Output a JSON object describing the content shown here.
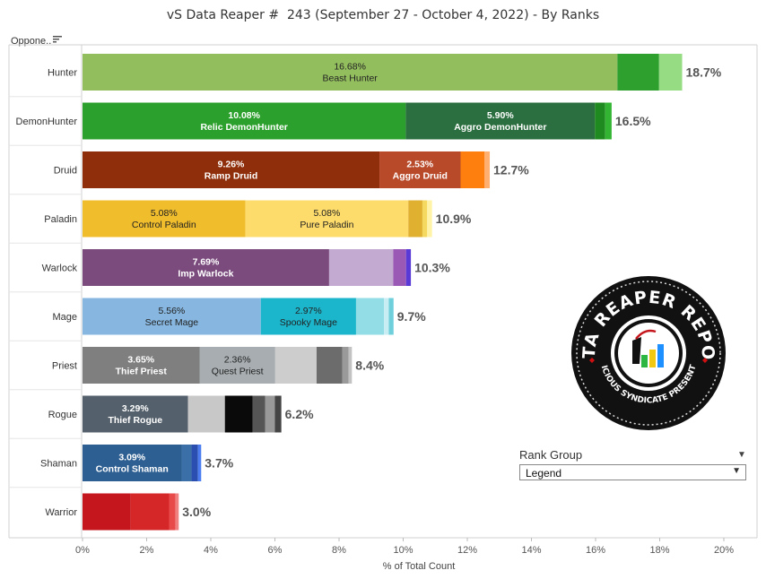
{
  "title": "vS Data Reaper #  243 (September 27 - October 4, 2022) - By Ranks",
  "opponent_header": "Oppone..",
  "rank_group": {
    "label": "Rank Group",
    "selected": "Legend"
  },
  "logo": {
    "main_text": "DATA REAPER REPORT",
    "sub_text": "VICIOUS SYNDICATE PRESENTS",
    "bar_colors": [
      "#2db742",
      "#f2c811",
      "#1e90ff"
    ]
  },
  "chart_data": {
    "type": "bar",
    "orientation": "horizontal",
    "stacked": true,
    "xlabel": "% of Total Count",
    "xlim": [
      0,
      21
    ],
    "xticks": [
      "0%",
      "2%",
      "4%",
      "6%",
      "8%",
      "10%",
      "12%",
      "14%",
      "16%",
      "18%",
      "20%"
    ],
    "categories": [
      "Hunter",
      "DemonHunter",
      "Druid",
      "Paladin",
      "Warlock",
      "Mage",
      "Priest",
      "Rogue",
      "Shaman",
      "Warrior"
    ],
    "totals": [
      "18.7%",
      "16.5%",
      "12.7%",
      "10.9%",
      "10.3%",
      "9.7%",
      "8.4%",
      "6.2%",
      "3.7%",
      "3.0%"
    ],
    "rows": [
      {
        "class": "Hunter",
        "segments": [
          {
            "value": 16.68,
            "color": "#93be5e",
            "label": "Beast Hunter",
            "pct": "16.68%",
            "text_color": "#222"
          },
          {
            "value": 1.3,
            "color": "#2ea02e"
          },
          {
            "value": 0.72,
            "color": "#96dc82"
          }
        ]
      },
      {
        "class": "DemonHunter",
        "segments": [
          {
            "value": 10.08,
            "color": "#2ca02c",
            "label": "Relic DemonHunter",
            "pct": "10.08%",
            "text_color": "#fff"
          },
          {
            "value": 5.9,
            "color": "#2b6e3f",
            "label": "Aggro DemonHunter",
            "pct": "5.90%",
            "text_color": "#fff"
          },
          {
            "value": 0.32,
            "color": "#1f8a1f"
          },
          {
            "value": 0.2,
            "color": "#33b533"
          }
        ]
      },
      {
        "class": "Druid",
        "segments": [
          {
            "value": 9.26,
            "color": "#8e2e0a",
            "label": "Ramp Druid",
            "pct": "9.26%",
            "text_color": "#fff"
          },
          {
            "value": 2.53,
            "color": "#b84a2a",
            "label": "Aggro Druid",
            "pct": "2.53%",
            "text_color": "#fff"
          },
          {
            "value": 0.75,
            "color": "#ff7f0e"
          },
          {
            "value": 0.16,
            "color": "#ffb070"
          }
        ]
      },
      {
        "class": "Paladin",
        "segments": [
          {
            "value": 5.08,
            "color": "#f0bd2c",
            "label": "Control Paladin",
            "pct": "5.08%",
            "text_color": "#222"
          },
          {
            "value": 5.08,
            "color": "#fedc6b",
            "label": "Pure Paladin",
            "pct": "5.08%",
            "text_color": "#222"
          },
          {
            "value": 0.44,
            "color": "#e0b030"
          },
          {
            "value": 0.15,
            "color": "#f5d860"
          },
          {
            "value": 0.15,
            "color": "#fff3a8"
          }
        ]
      },
      {
        "class": "Warlock",
        "segments": [
          {
            "value": 7.69,
            "color": "#7b4b7e",
            "label": "Imp Warlock",
            "pct": "7.69%",
            "text_color": "#fff"
          },
          {
            "value": 2.0,
            "color": "#c3aad0"
          },
          {
            "value": 0.4,
            "color": "#9b59b6"
          },
          {
            "value": 0.15,
            "color": "#5a3ad6"
          }
        ]
      },
      {
        "class": "Mage",
        "segments": [
          {
            "value": 5.56,
            "color": "#87b7e0",
            "label": "Secret Mage",
            "pct": "5.56%",
            "text_color": "#222"
          },
          {
            "value": 2.97,
            "color": "#1bb6cc",
            "label": "Spooky Mage",
            "pct": "2.97%",
            "text_color": "#222"
          },
          {
            "value": 0.87,
            "color": "#93dde6"
          },
          {
            "value": 0.15,
            "color": "#c8eef4"
          },
          {
            "value": 0.15,
            "color": "#6fd0dc"
          }
        ]
      },
      {
        "class": "Priest",
        "segments": [
          {
            "value": 3.65,
            "color": "#7f7f7f",
            "label": "Thief Priest",
            "pct": "3.65%",
            "text_color": "#fff"
          },
          {
            "value": 2.36,
            "color": "#a7adb0",
            "label": "Quest Priest",
            "pct": "2.36%",
            "text_color": "#222"
          },
          {
            "value": 1.29,
            "color": "#cdcdcd"
          },
          {
            "value": 0.8,
            "color": "#6c6c6c"
          },
          {
            "value": 0.2,
            "color": "#9a9a9a"
          },
          {
            "value": 0.1,
            "color": "#c2c2c2"
          }
        ]
      },
      {
        "class": "Rogue",
        "segments": [
          {
            "value": 3.29,
            "color": "#54606b",
            "label": "Thief Rogue",
            "pct": "3.29%",
            "text_color": "#fff"
          },
          {
            "value": 1.15,
            "color": "#c8c8c8"
          },
          {
            "value": 0.86,
            "color": "#0a0a0a"
          },
          {
            "value": 0.4,
            "color": "#555555"
          },
          {
            "value": 0.3,
            "color": "#999999"
          },
          {
            "value": 0.2,
            "color": "#444444"
          }
        ]
      },
      {
        "class": "Shaman",
        "segments": [
          {
            "value": 3.09,
            "color": "#2e5f92",
            "label": "Control Shaman",
            "pct": "3.09%",
            "text_color": "#fff"
          },
          {
            "value": 0.31,
            "color": "#3b6fa8"
          },
          {
            "value": 0.2,
            "color": "#2a4fb0"
          },
          {
            "value": 0.1,
            "color": "#4b7cf0"
          }
        ]
      },
      {
        "class": "Warrior",
        "segments": [
          {
            "value": 1.5,
            "color": "#c4161c"
          },
          {
            "value": 1.2,
            "color": "#d62728"
          },
          {
            "value": 0.2,
            "color": "#e84a4a"
          },
          {
            "value": 0.1,
            "color": "#f08080"
          }
        ]
      }
    ]
  }
}
